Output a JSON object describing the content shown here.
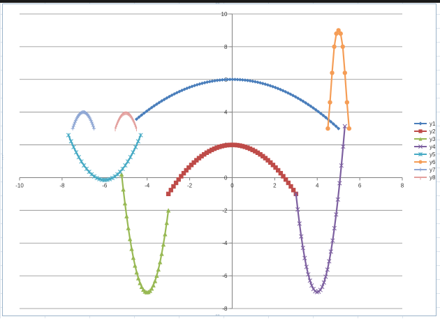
{
  "chart_data": {
    "type": "scatter",
    "title": "",
    "xlabel": "",
    "ylabel": "",
    "xlim": [
      -10,
      8
    ],
    "ylim": [
      -8,
      10
    ],
    "x_ticks": [
      "-10",
      "-8",
      "-6",
      "-4",
      "-2",
      "0",
      "2",
      "4",
      "6",
      "8"
    ],
    "y_ticks": [
      "-8",
      "-6",
      "-4",
      "-2",
      "0",
      "2",
      "4",
      "6",
      "8",
      "10"
    ],
    "grid": "horizontal",
    "legend_position": "right",
    "series": [
      {
        "name": "y1",
        "color": "#4a7ebb",
        "marker": "diamond",
        "x_range": [
          -4.5,
          5
        ],
        "formula": "6 - 0.12*x^2"
      },
      {
        "name": "y2",
        "color": "#be4b48",
        "marker": "square",
        "x_range": [
          -3,
          3
        ],
        "formula": "2 - 0.333*x^2"
      },
      {
        "name": "y3",
        "color": "#98b954",
        "marker": "triangle",
        "x_range": [
          -5.2,
          -3
        ],
        "formula": "-7 + 5*(x+4)^2"
      },
      {
        "name": "y4",
        "color": "#7d60a0",
        "marker": "x",
        "x_range": [
          3,
          5.3
        ],
        "formula": "-7 + 6*(x-4)^2"
      },
      {
        "name": "y5",
        "color": "#46aac4",
        "marker": "star",
        "x_range": [
          -7.7,
          -4.3
        ],
        "formula": "0.95*(x+6)^2 - 0.15"
      },
      {
        "name": "y6",
        "color": "#f59d56",
        "marker": "circle",
        "x": [
          4.5,
          4.6,
          4.7,
          4.8,
          4.9,
          5.0,
          5.1,
          5.2,
          5.3,
          5.4,
          5.5
        ],
        "y": [
          3.0,
          4.6,
          6.4,
          8.0,
          8.8,
          9.0,
          8.8,
          8.0,
          6.4,
          4.6,
          3.0
        ]
      },
      {
        "name": "y7",
        "color": "#8fa7d4",
        "marker": "plus",
        "x_range": [
          -7.5,
          -6.5
        ],
        "formula": "4 - 4*(x+7)^2"
      },
      {
        "name": "y8",
        "color": "#e3a09e",
        "marker": "dash",
        "x_range": [
          -5.5,
          -4.5
        ],
        "formula": "4 - 4*(x+5)^2"
      }
    ]
  }
}
